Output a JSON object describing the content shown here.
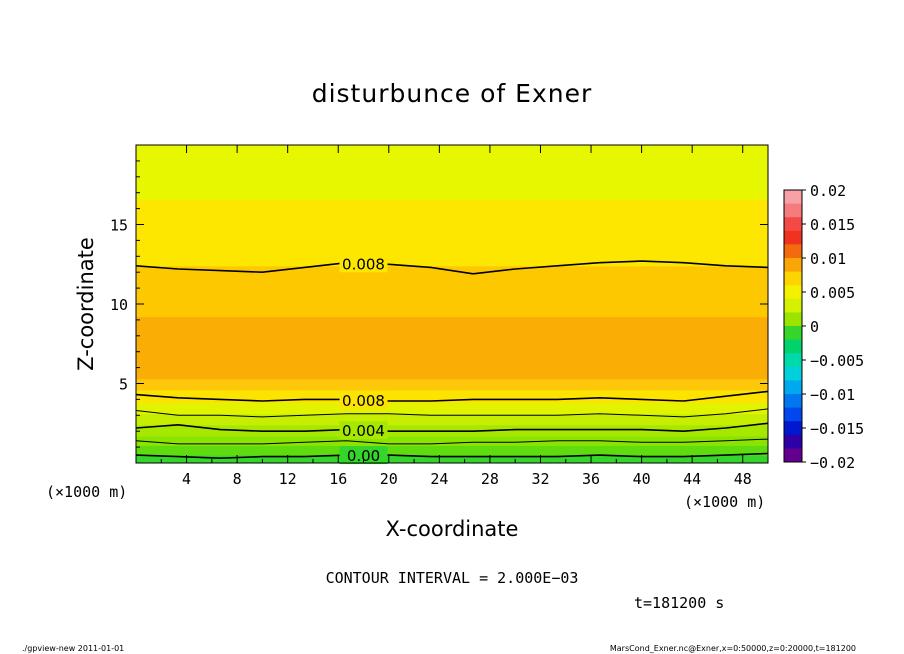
{
  "chart_data": {
    "type": "heatmap",
    "title": "disturbunce of Exner",
    "xlabel": "X-coordinate",
    "ylabel": "Z-coordinate",
    "x_unit": "(×1000 m)",
    "y_unit": "(×1000 m)",
    "xlim": [
      0,
      50
    ],
    "ylim": [
      0,
      20
    ],
    "x_ticks": [
      "4",
      "8",
      "12",
      "16",
      "20",
      "24",
      "28",
      "32",
      "36",
      "40",
      "44",
      "48"
    ],
    "x_tick_values": [
      4,
      8,
      12,
      16,
      20,
      24,
      28,
      32,
      36,
      40,
      44,
      48
    ],
    "y_ticks": [
      "5",
      "10",
      "15"
    ],
    "y_tick_values": [
      5,
      10,
      15
    ],
    "colorbar": {
      "min": -0.02,
      "max": 0.02,
      "labels": [
        "0.02",
        "0.015",
        "0.01",
        "0.005",
        "0",
        "−0.005",
        "−0.01",
        "−0.015",
        "−0.02"
      ],
      "label_values": [
        0.02,
        0.015,
        0.01,
        0.005,
        0,
        -0.005,
        -0.01,
        -0.015,
        -0.02
      ],
      "levels": [
        {
          "from": 0.018,
          "to": 0.02,
          "color": "#f7a0a6"
        },
        {
          "from": 0.016,
          "to": 0.018,
          "color": "#f67b7f"
        },
        {
          "from": 0.014,
          "to": 0.016,
          "color": "#f34a46"
        },
        {
          "from": 0.012,
          "to": 0.014,
          "color": "#f0321f"
        },
        {
          "from": 0.01,
          "to": 0.012,
          "color": "#f46a0e"
        },
        {
          "from": 0.008,
          "to": 0.01,
          "color": "#f9a707"
        },
        {
          "from": 0.006,
          "to": 0.008,
          "color": "#fdd300"
        },
        {
          "from": 0.004,
          "to": 0.006,
          "color": "#f3f100"
        },
        {
          "from": 0.002,
          "to": 0.004,
          "color": "#d4f200"
        },
        {
          "from": 0.0,
          "to": 0.002,
          "color": "#9be400"
        },
        {
          "from": -0.002,
          "to": 0.0,
          "color": "#36d52b"
        },
        {
          "from": -0.004,
          "to": -0.002,
          "color": "#00d26c"
        },
        {
          "from": -0.006,
          "to": -0.004,
          "color": "#00d9a9"
        },
        {
          "from": -0.008,
          "to": -0.006,
          "color": "#00d0d9"
        },
        {
          "from": -0.01,
          "to": -0.008,
          "color": "#00a9ef"
        },
        {
          "from": -0.012,
          "to": -0.01,
          "color": "#0077ef"
        },
        {
          "from": -0.014,
          "to": -0.012,
          "color": "#0048ee"
        },
        {
          "from": -0.016,
          "to": -0.014,
          "color": "#0018cf"
        },
        {
          "from": -0.018,
          "to": -0.016,
          "color": "#2e00a5"
        },
        {
          "from": -0.02,
          "to": -0.018,
          "color": "#63008f"
        }
      ]
    },
    "bands": [
      {
        "z_from": 0.0,
        "z_to": 0.5,
        "color": "#36d52b"
      },
      {
        "z_from": 0.5,
        "z_to": 1.1,
        "color": "#5fdb0f"
      },
      {
        "z_from": 1.1,
        "z_to": 1.7,
        "color": "#8be300"
      },
      {
        "z_from": 1.7,
        "z_to": 2.4,
        "color": "#a6e800"
      },
      {
        "z_from": 2.4,
        "z_to": 3.1,
        "color": "#c6ee00"
      },
      {
        "z_from": 3.1,
        "z_to": 3.8,
        "color": "#e2f300"
      },
      {
        "z_from": 3.8,
        "z_to": 4.6,
        "color": "#fde300"
      },
      {
        "z_from": 4.6,
        "z_to": 5.3,
        "color": "#fdc80a"
      },
      {
        "z_from": 5.3,
        "z_to": 9.2,
        "color": "#f9ad05"
      },
      {
        "z_from": 9.2,
        "z_to": 12.4,
        "color": "#fdc800"
      },
      {
        "z_from": 12.4,
        "z_to": 16.6,
        "color": "#fde600"
      },
      {
        "z_from": 16.6,
        "z_to": 20.0,
        "color": "#e6f700"
      }
    ],
    "contours": [
      {
        "level": "0.008",
        "z": [
          12.4,
          12.2,
          12.1,
          12.0,
          12.3,
          12.6,
          12.5,
          12.3,
          11.9,
          12.2,
          12.4,
          12.6,
          12.7,
          12.6,
          12.4,
          12.3
        ],
        "label_x": 18
      },
      {
        "level": "0.008",
        "z": [
          4.3,
          4.1,
          4.0,
          3.9,
          4.0,
          4.0,
          3.9,
          3.9,
          4.0,
          4.0,
          4.0,
          4.1,
          4.0,
          3.9,
          4.2,
          4.5
        ],
        "label_x": 18
      },
      {
        "level": "",
        "z": [
          3.3,
          3.0,
          3.0,
          2.9,
          3.0,
          3.1,
          3.1,
          3.0,
          3.0,
          3.0,
          3.0,
          3.1,
          3.0,
          2.9,
          3.1,
          3.4
        ]
      },
      {
        "level": "0.004",
        "z": [
          2.2,
          2.4,
          2.1,
          2.0,
          2.0,
          2.1,
          2.0,
          2.0,
          2.0,
          2.1,
          2.1,
          2.1,
          2.1,
          2.0,
          2.2,
          2.5
        ],
        "label_x": 18
      },
      {
        "level": "",
        "z": [
          1.4,
          1.2,
          1.2,
          1.2,
          1.3,
          1.4,
          1.2,
          1.2,
          1.3,
          1.3,
          1.4,
          1.4,
          1.3,
          1.3,
          1.4,
          1.5
        ]
      },
      {
        "level": "0.00",
        "z": [
          0.5,
          0.4,
          0.3,
          0.4,
          0.4,
          0.5,
          0.5,
          0.4,
          0.4,
          0.4,
          0.4,
          0.5,
          0.4,
          0.4,
          0.5,
          0.6
        ],
        "label_x": 18
      }
    ],
    "grid": false,
    "legend": "right colorbar"
  },
  "annotations": {
    "contour_interval": "CONTOUR INTERVAL = 2.000E−03",
    "time": "t=181200 s",
    "footer_left": "./gpview-new   2011-01-01",
    "footer_right": "MarsCond_Exner.nc@Exner,x=0:50000,z=0:20000,t=181200"
  }
}
